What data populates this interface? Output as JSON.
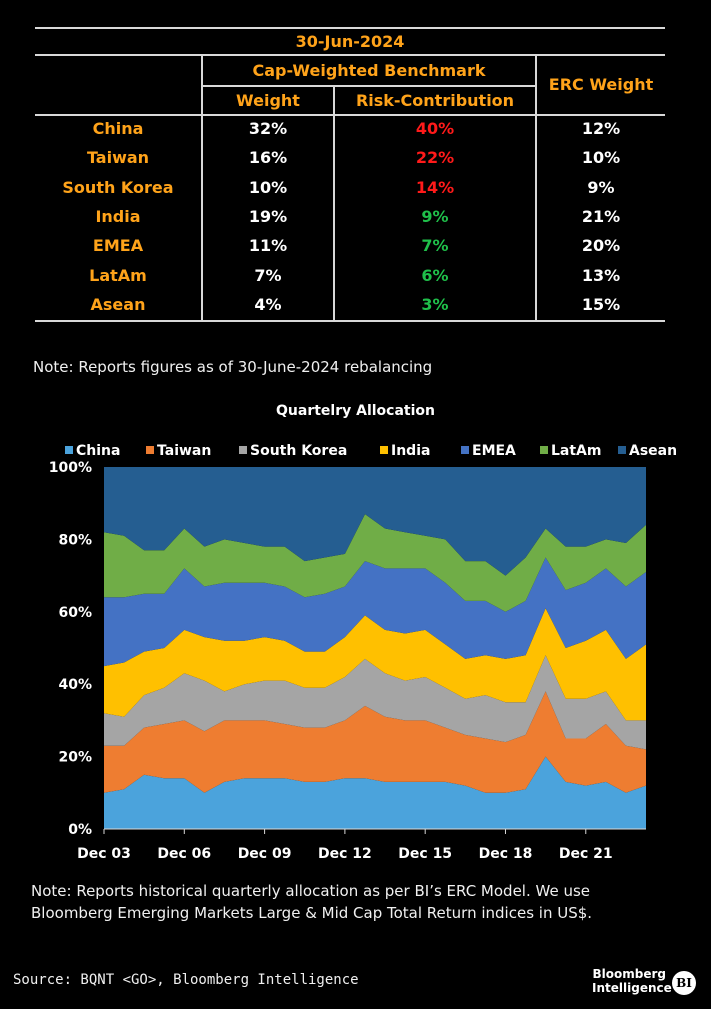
{
  "table": {
    "date": "30-Jun-2024",
    "group_header": "Cap-Weighted Benchmark",
    "col_weight": "Weight",
    "col_risk": "Risk-Contribution",
    "col_erc": "ERC Weight",
    "rows": [
      {
        "region": "China",
        "weight": "32%",
        "risk": "40%",
        "risk_color": "#ff1a1a",
        "erc": "12%"
      },
      {
        "region": "Taiwan",
        "weight": "16%",
        "risk": "22%",
        "risk_color": "#ff1a1a",
        "erc": "10%"
      },
      {
        "region": "South Korea",
        "weight": "10%",
        "risk": "14%",
        "risk_color": "#ff1a1a",
        "erc": "9%"
      },
      {
        "region": "India",
        "weight": "19%",
        "risk": "9%",
        "risk_color": "#1fbf4a",
        "erc": "21%"
      },
      {
        "region": "EMEA",
        "weight": "11%",
        "risk": "7%",
        "risk_color": "#1fbf4a",
        "erc": "20%"
      },
      {
        "region": "LatAm",
        "weight": "7%",
        "risk": "6%",
        "risk_color": "#1fbf4a",
        "erc": "13%"
      },
      {
        "region": "Asean",
        "weight": "4%",
        "risk": "3%",
        "risk_color": "#1fbf4a",
        "erc": "15%"
      }
    ]
  },
  "note1": "Note: Reports figures as of 30-June-2024 rebalancing",
  "note2_line1": "Note: Reports historical quarterly allocation as per BI’s ERC Model. We use",
  "note2_line2": "Bloomberg Emerging Markets Large & Mid Cap Total Return indices in US$.",
  "source": "Source: BQNT <GO>, Bloomberg Intelligence",
  "logo": {
    "line1": "Bloomberg",
    "line2": "Intelligence",
    "badge": "BI"
  },
  "chart_data": {
    "type": "area",
    "stacked": true,
    "title": "Quartelry Allocation",
    "legend_position": "top",
    "x_tick_labels": [
      "Dec 03",
      "Dec 06",
      "Dec 09",
      "Dec 12",
      "Dec 15",
      "Dec 18",
      "Dec 21"
    ],
    "x_tick_quarters": [
      0,
      12,
      24,
      36,
      48,
      60,
      72
    ],
    "y_tick_labels": [
      "0%",
      "20%",
      "40%",
      "60%",
      "80%",
      "100%"
    ],
    "ylim": [
      0,
      100
    ],
    "y_unit": "%",
    "x_anchor_quarters": [
      0,
      3,
      6,
      9,
      12,
      15,
      18,
      21,
      24,
      27,
      30,
      33,
      36,
      39,
      42,
      45,
      48,
      51,
      54,
      57,
      60,
      63,
      66,
      69,
      72,
      75,
      78,
      81
    ],
    "series": [
      {
        "name": "China",
        "color": "#4ba3dc",
        "values": [
          10,
          11,
          15,
          14,
          14,
          10,
          13,
          14,
          14,
          14,
          13,
          13,
          14,
          14,
          13,
          13,
          13,
          13,
          12,
          10,
          10,
          11,
          20,
          13,
          12,
          13,
          10,
          12
        ]
      },
      {
        "name": "Taiwan",
        "color": "#ee7d31",
        "values": [
          13,
          12,
          13,
          15,
          16,
          17,
          17,
          16,
          16,
          15,
          15,
          15,
          16,
          20,
          18,
          17,
          17,
          15,
          14,
          15,
          14,
          15,
          18,
          12,
          13,
          16,
          13,
          10
        ]
      },
      {
        "name": "South Korea",
        "color": "#a5a5a5",
        "values": [
          9,
          8,
          9,
          10,
          13,
          14,
          8,
          10,
          11,
          12,
          11,
          11,
          12,
          13,
          12,
          11,
          12,
          11,
          10,
          12,
          11,
          9,
          10,
          11,
          11,
          9,
          7,
          8
        ]
      },
      {
        "name": "India",
        "color": "#ffc000",
        "values": [
          13,
          15,
          12,
          11,
          12,
          12,
          14,
          12,
          12,
          11,
          10,
          10,
          11,
          12,
          12,
          13,
          13,
          12,
          11,
          11,
          12,
          13,
          13,
          14,
          16,
          17,
          17,
          21
        ]
      },
      {
        "name": "EMEA",
        "color": "#4472c4",
        "values": [
          19,
          18,
          16,
          15,
          17,
          14,
          16,
          16,
          15,
          15,
          15,
          16,
          14,
          15,
          17,
          18,
          17,
          17,
          16,
          15,
          13,
          15,
          14,
          16,
          16,
          17,
          20,
          20
        ]
      },
      {
        "name": "LatAm",
        "color": "#70ad47",
        "values": [
          18,
          17,
          12,
          12,
          11,
          11,
          12,
          11,
          10,
          11,
          10,
          10,
          9,
          13,
          11,
          10,
          9,
          12,
          11,
          11,
          10,
          12,
          8,
          12,
          10,
          8,
          12,
          13
        ]
      },
      {
        "name": "Asean",
        "color": "#255e91",
        "values": [
          18,
          19,
          23,
          23,
          17,
          22,
          20,
          21,
          22,
          22,
          26,
          25,
          24,
          13,
          17,
          18,
          19,
          20,
          26,
          26,
          30,
          25,
          17,
          22,
          22,
          20,
          21,
          16
        ]
      }
    ]
  }
}
